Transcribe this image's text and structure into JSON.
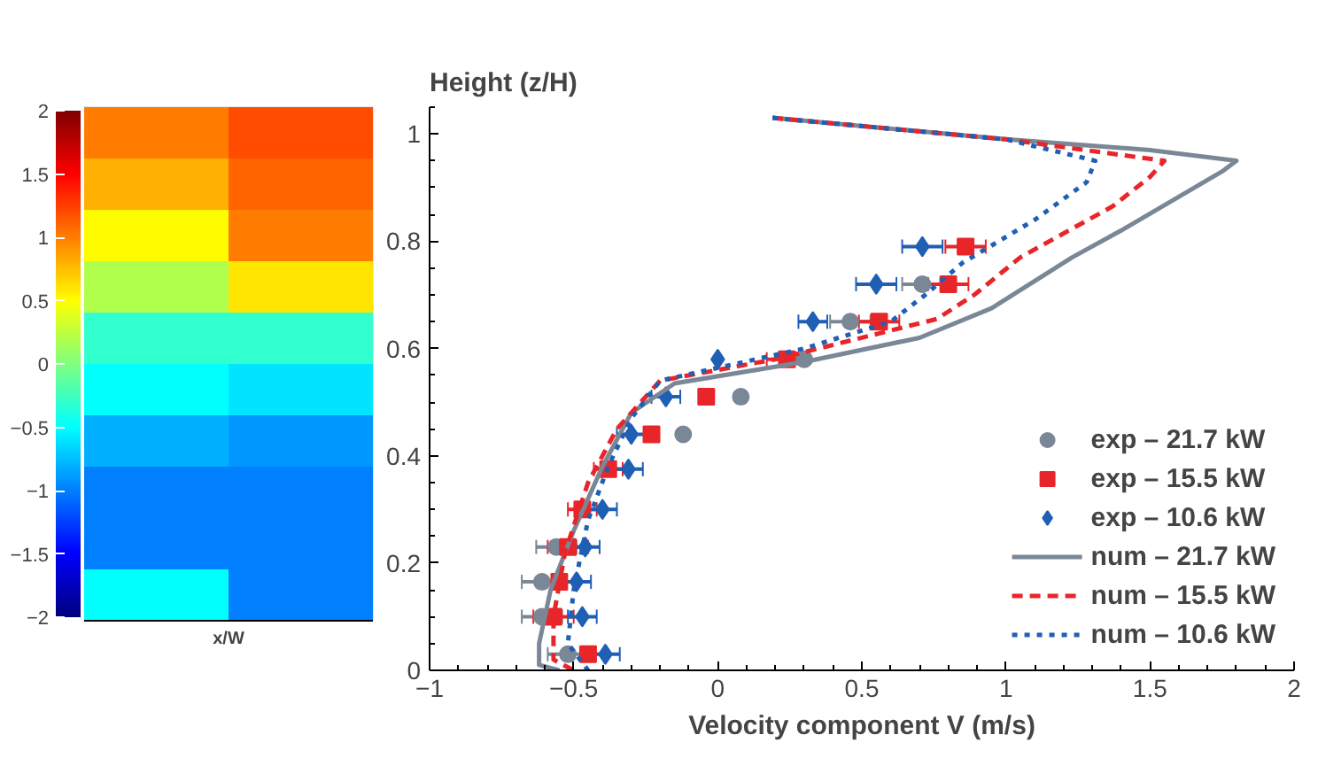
{
  "chart_data": [
    {
      "type": "heatmap",
      "xlabel": "x/W",
      "categories": [
        null,
        null
      ],
      "y_categories": [
        null,
        null,
        null,
        null,
        null,
        null,
        null,
        null,
        null,
        null
      ],
      "cells": [
        [
          1.0,
          1.2
        ],
        [
          0.8,
          1.1
        ],
        [
          0.5,
          1.0
        ],
        [
          0.2,
          0.6
        ],
        [
          -0.3,
          -0.3
        ],
        [
          -0.5,
          -0.6
        ],
        [
          -0.8,
          -0.9
        ],
        [
          -1.0,
          -1.0
        ],
        [
          -1.0,
          -1.0
        ],
        [
          -0.5,
          -1.0
        ]
      ],
      "clim": [
        -2,
        2
      ],
      "cticks": [
        -2,
        -1.5,
        -1,
        -0.5,
        0,
        0.5,
        1,
        1.5,
        2
      ]
    },
    {
      "type": "scatter",
      "xlabel": "Velocity component V (m/s)",
      "ylabel": "Height (z/H)",
      "xlim": [
        -1,
        2
      ],
      "ylim": [
        0,
        1.05
      ],
      "xticks": [
        {
          "value": -1,
          "label": "−1"
        },
        {
          "value": -0.5,
          "label": "−0.5"
        },
        0,
        0.5,
        1,
        1.5,
        2
      ],
      "yticks": [
        0,
        0.2,
        0.4,
        0.6,
        0.8,
        1
      ],
      "grid": false,
      "legend": "bottom right",
      "series": [
        {
          "name": "exp – 21.7 kW",
          "type": "scatter",
          "marker": "circle",
          "color": "#7a8796",
          "x": [
            null,
            0.71,
            0.46,
            0.3,
            0.08,
            -0.12,
            null,
            null,
            -0.56,
            -0.61,
            -0.61,
            -0.52
          ],
          "values": [
            null,
            0.72,
            0.65,
            0.58,
            0.51,
            0.44,
            null,
            null,
            0.23,
            0.165,
            0.1,
            0.03
          ],
          "xerrors": [
            null,
            0.07,
            0.07,
            null,
            null,
            null,
            null,
            null,
            0.07,
            0.07,
            0.07,
            0.07
          ]
        },
        {
          "name": "exp – 15.5 kW",
          "type": "scatter",
          "marker": "square",
          "color": "#e8262a",
          "x": [
            0.86,
            0.8,
            0.56,
            0.24,
            -0.04,
            -0.23,
            -0.38,
            -0.47,
            -0.52,
            -0.55,
            -0.57,
            -0.45
          ],
          "values": [
            0.79,
            0.72,
            0.65,
            0.58,
            0.51,
            0.44,
            0.375,
            0.3,
            0.23,
            0.165,
            0.1,
            0.03
          ],
          "xerrors": [
            0.07,
            0.07,
            0.07,
            0.07,
            null,
            null,
            0.05,
            0.05,
            0.07,
            null,
            0.07,
            null
          ]
        },
        {
          "name": "exp – 10.6 kW",
          "type": "scatter",
          "marker": "diamond",
          "color": "#1f5fb4",
          "x": [
            0.71,
            0.55,
            0.33,
            0.0,
            -0.18,
            -0.3,
            -0.31,
            -0.4,
            -0.46,
            -0.49,
            -0.47,
            -0.39
          ],
          "values": [
            0.79,
            0.72,
            0.65,
            0.58,
            0.51,
            0.44,
            0.375,
            0.3,
            0.23,
            0.165,
            0.1,
            0.03
          ],
          "xerrors": [
            0.07,
            0.07,
            0.05,
            null,
            0.05,
            0.05,
            0.05,
            0.05,
            0.05,
            0.05,
            0.05,
            0.05
          ]
        },
        {
          "name": "num – 21.7 kW",
          "type": "line",
          "line_style": "solid",
          "color": "#7a8796",
          "x": [
            0.19,
            1.0,
            1.5,
            1.8,
            1.75,
            1.4,
            1.23,
            0.95,
            0.7,
            0.3,
            -0.15,
            -0.3,
            -0.4,
            -0.5,
            -0.58,
            -0.62,
            -0.62,
            -0.55
          ],
          "values": [
            1.03,
            0.99,
            0.97,
            0.95,
            0.93,
            0.82,
            0.77,
            0.675,
            0.62,
            0.575,
            0.535,
            0.48,
            0.38,
            0.26,
            0.15,
            0.05,
            0.01,
            0.0
          ]
        },
        {
          "name": "num – 15.5 kW",
          "type": "line",
          "line_style": "dashed",
          "color": "#e8262a",
          "x": [
            0.19,
            1.0,
            1.55,
            1.5,
            1.37,
            1.05,
            0.89,
            0.76,
            0.2,
            -0.2,
            -0.35,
            -0.45,
            -0.53,
            -0.57,
            -0.57,
            -0.5
          ],
          "values": [
            1.03,
            0.99,
            0.95,
            0.92,
            0.865,
            0.77,
            0.7,
            0.655,
            0.58,
            0.54,
            0.45,
            0.35,
            0.22,
            0.1,
            0.02,
            0.0
          ]
        },
        {
          "name": "num – 10.6 kW",
          "type": "line",
          "line_style": "dotted",
          "color": "#1f5fb4",
          "x": [
            0.19,
            1.0,
            1.31,
            1.28,
            1.1,
            0.85,
            0.72,
            0.6,
            0.3,
            -0.2,
            -0.3,
            -0.38,
            -0.45,
            -0.5,
            -0.52,
            -0.45
          ],
          "values": [
            1.03,
            0.99,
            0.95,
            0.91,
            0.84,
            0.76,
            0.7,
            0.65,
            0.6,
            0.54,
            0.47,
            0.38,
            0.28,
            0.15,
            0.05,
            0.0
          ]
        }
      ]
    }
  ]
}
